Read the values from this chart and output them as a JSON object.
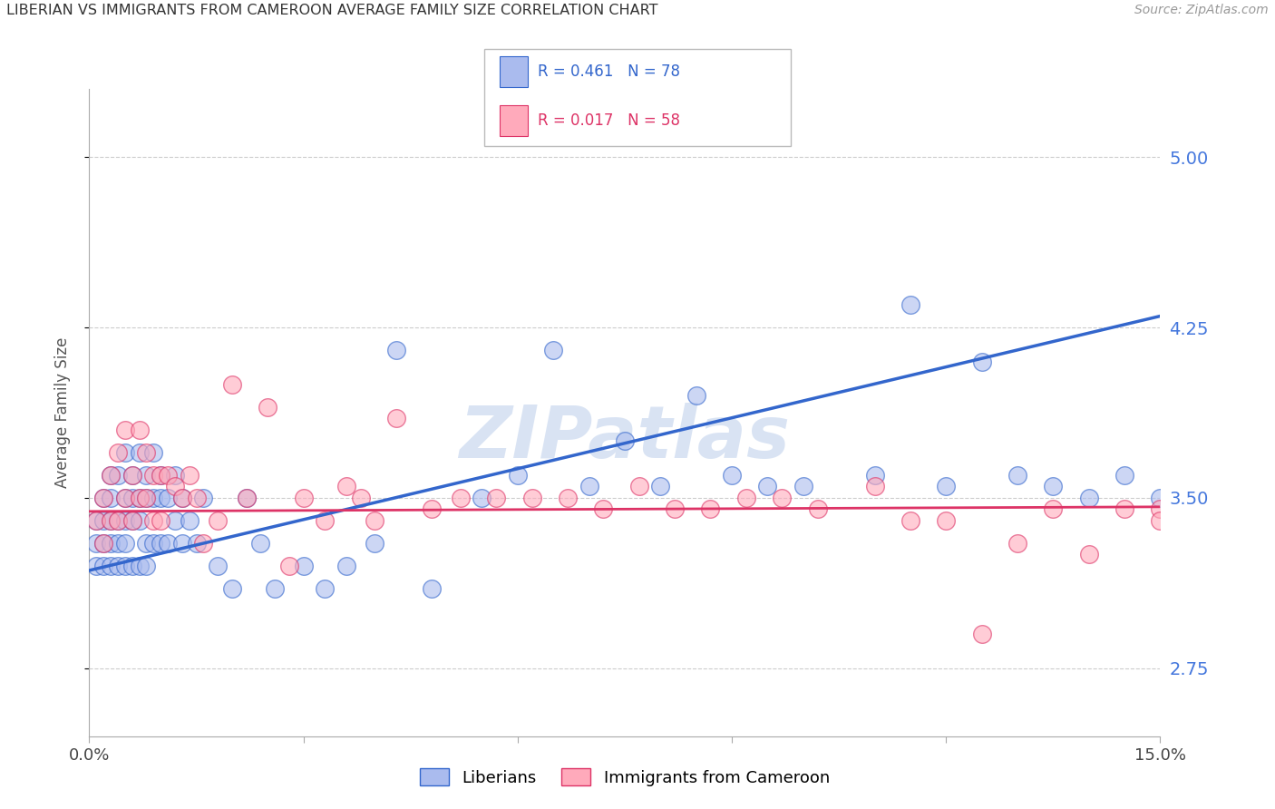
{
  "title": "LIBERIAN VS IMMIGRANTS FROM CAMEROON AVERAGE FAMILY SIZE CORRELATION CHART",
  "source": "Source: ZipAtlas.com",
  "ylabel": "Average Family Size",
  "xmin": 0.0,
  "xmax": 0.15,
  "ymin": 2.45,
  "ymax": 5.3,
  "yticks": [
    2.75,
    3.5,
    4.25,
    5.0
  ],
  "series1_label": "Liberians",
  "series2_label": "Immigrants from Cameroon",
  "series1_color": "#aabbee",
  "series2_color": "#ffaabb",
  "trendline1_color": "#3366cc",
  "trendline2_color": "#dd3366",
  "background_color": "#ffffff",
  "grid_color": "#cccccc",
  "watermark": "ZIPatlas",
  "watermark_color": "#c5d5ee",
  "right_axis_label_color": "#4477dd",
  "series1_x": [
    0.001,
    0.001,
    0.001,
    0.002,
    0.002,
    0.002,
    0.002,
    0.003,
    0.003,
    0.003,
    0.003,
    0.003,
    0.004,
    0.004,
    0.004,
    0.004,
    0.005,
    0.005,
    0.005,
    0.005,
    0.005,
    0.006,
    0.006,
    0.006,
    0.006,
    0.007,
    0.007,
    0.007,
    0.007,
    0.008,
    0.008,
    0.008,
    0.008,
    0.009,
    0.009,
    0.009,
    0.01,
    0.01,
    0.01,
    0.011,
    0.011,
    0.012,
    0.012,
    0.013,
    0.013,
    0.014,
    0.015,
    0.016,
    0.018,
    0.02,
    0.022,
    0.024,
    0.026,
    0.03,
    0.033,
    0.036,
    0.04,
    0.043,
    0.048,
    0.055,
    0.06,
    0.065,
    0.07,
    0.075,
    0.08,
    0.085,
    0.09,
    0.095,
    0.1,
    0.11,
    0.115,
    0.12,
    0.125,
    0.13,
    0.135,
    0.14,
    0.145,
    0.15
  ],
  "series1_y": [
    3.3,
    3.2,
    3.4,
    3.5,
    3.3,
    3.2,
    3.4,
    3.6,
    3.4,
    3.3,
    3.5,
    3.2,
    3.6,
    3.4,
    3.3,
    3.2,
    3.7,
    3.5,
    3.4,
    3.3,
    3.2,
    3.6,
    3.5,
    3.4,
    3.2,
    3.7,
    3.5,
    3.4,
    3.2,
    3.6,
    3.5,
    3.3,
    3.2,
    3.7,
    3.5,
    3.3,
    3.6,
    3.5,
    3.3,
    3.5,
    3.3,
    3.6,
    3.4,
    3.5,
    3.3,
    3.4,
    3.3,
    3.5,
    3.2,
    3.1,
    3.5,
    3.3,
    3.1,
    3.2,
    3.1,
    3.2,
    3.3,
    4.15,
    3.1,
    3.5,
    3.6,
    4.15,
    3.55,
    3.75,
    3.55,
    3.95,
    3.6,
    3.55,
    3.55,
    3.6,
    4.35,
    3.55,
    4.1,
    3.6,
    3.55,
    3.5,
    3.6,
    3.5
  ],
  "series2_x": [
    0.001,
    0.002,
    0.002,
    0.003,
    0.003,
    0.004,
    0.004,
    0.005,
    0.005,
    0.006,
    0.006,
    0.007,
    0.007,
    0.008,
    0.008,
    0.009,
    0.009,
    0.01,
    0.01,
    0.011,
    0.012,
    0.013,
    0.014,
    0.015,
    0.016,
    0.018,
    0.02,
    0.022,
    0.025,
    0.028,
    0.03,
    0.033,
    0.036,
    0.038,
    0.04,
    0.043,
    0.048,
    0.052,
    0.057,
    0.062,
    0.067,
    0.072,
    0.077,
    0.082,
    0.087,
    0.092,
    0.097,
    0.102,
    0.11,
    0.115,
    0.12,
    0.125,
    0.13,
    0.135,
    0.14,
    0.145,
    0.15,
    0.15
  ],
  "series2_y": [
    3.4,
    3.5,
    3.3,
    3.6,
    3.4,
    3.7,
    3.4,
    3.8,
    3.5,
    3.6,
    3.4,
    3.8,
    3.5,
    3.7,
    3.5,
    3.6,
    3.4,
    3.6,
    3.4,
    3.6,
    3.55,
    3.5,
    3.6,
    3.5,
    3.3,
    3.4,
    4.0,
    3.5,
    3.9,
    3.2,
    3.5,
    3.4,
    3.55,
    3.5,
    3.4,
    3.85,
    3.45,
    3.5,
    3.5,
    3.5,
    3.5,
    3.45,
    3.55,
    3.45,
    3.45,
    3.5,
    3.5,
    3.45,
    3.55,
    3.4,
    3.4,
    2.9,
    3.3,
    3.45,
    3.25,
    3.45,
    3.45,
    3.4
  ],
  "trendline1_x0": 0.0,
  "trendline1_y0": 3.18,
  "trendline1_x1": 0.15,
  "trendline1_y1": 4.3,
  "trendline2_x0": 0.0,
  "trendline2_y0": 3.44,
  "trendline2_x1": 0.15,
  "trendline2_y1": 3.46
}
